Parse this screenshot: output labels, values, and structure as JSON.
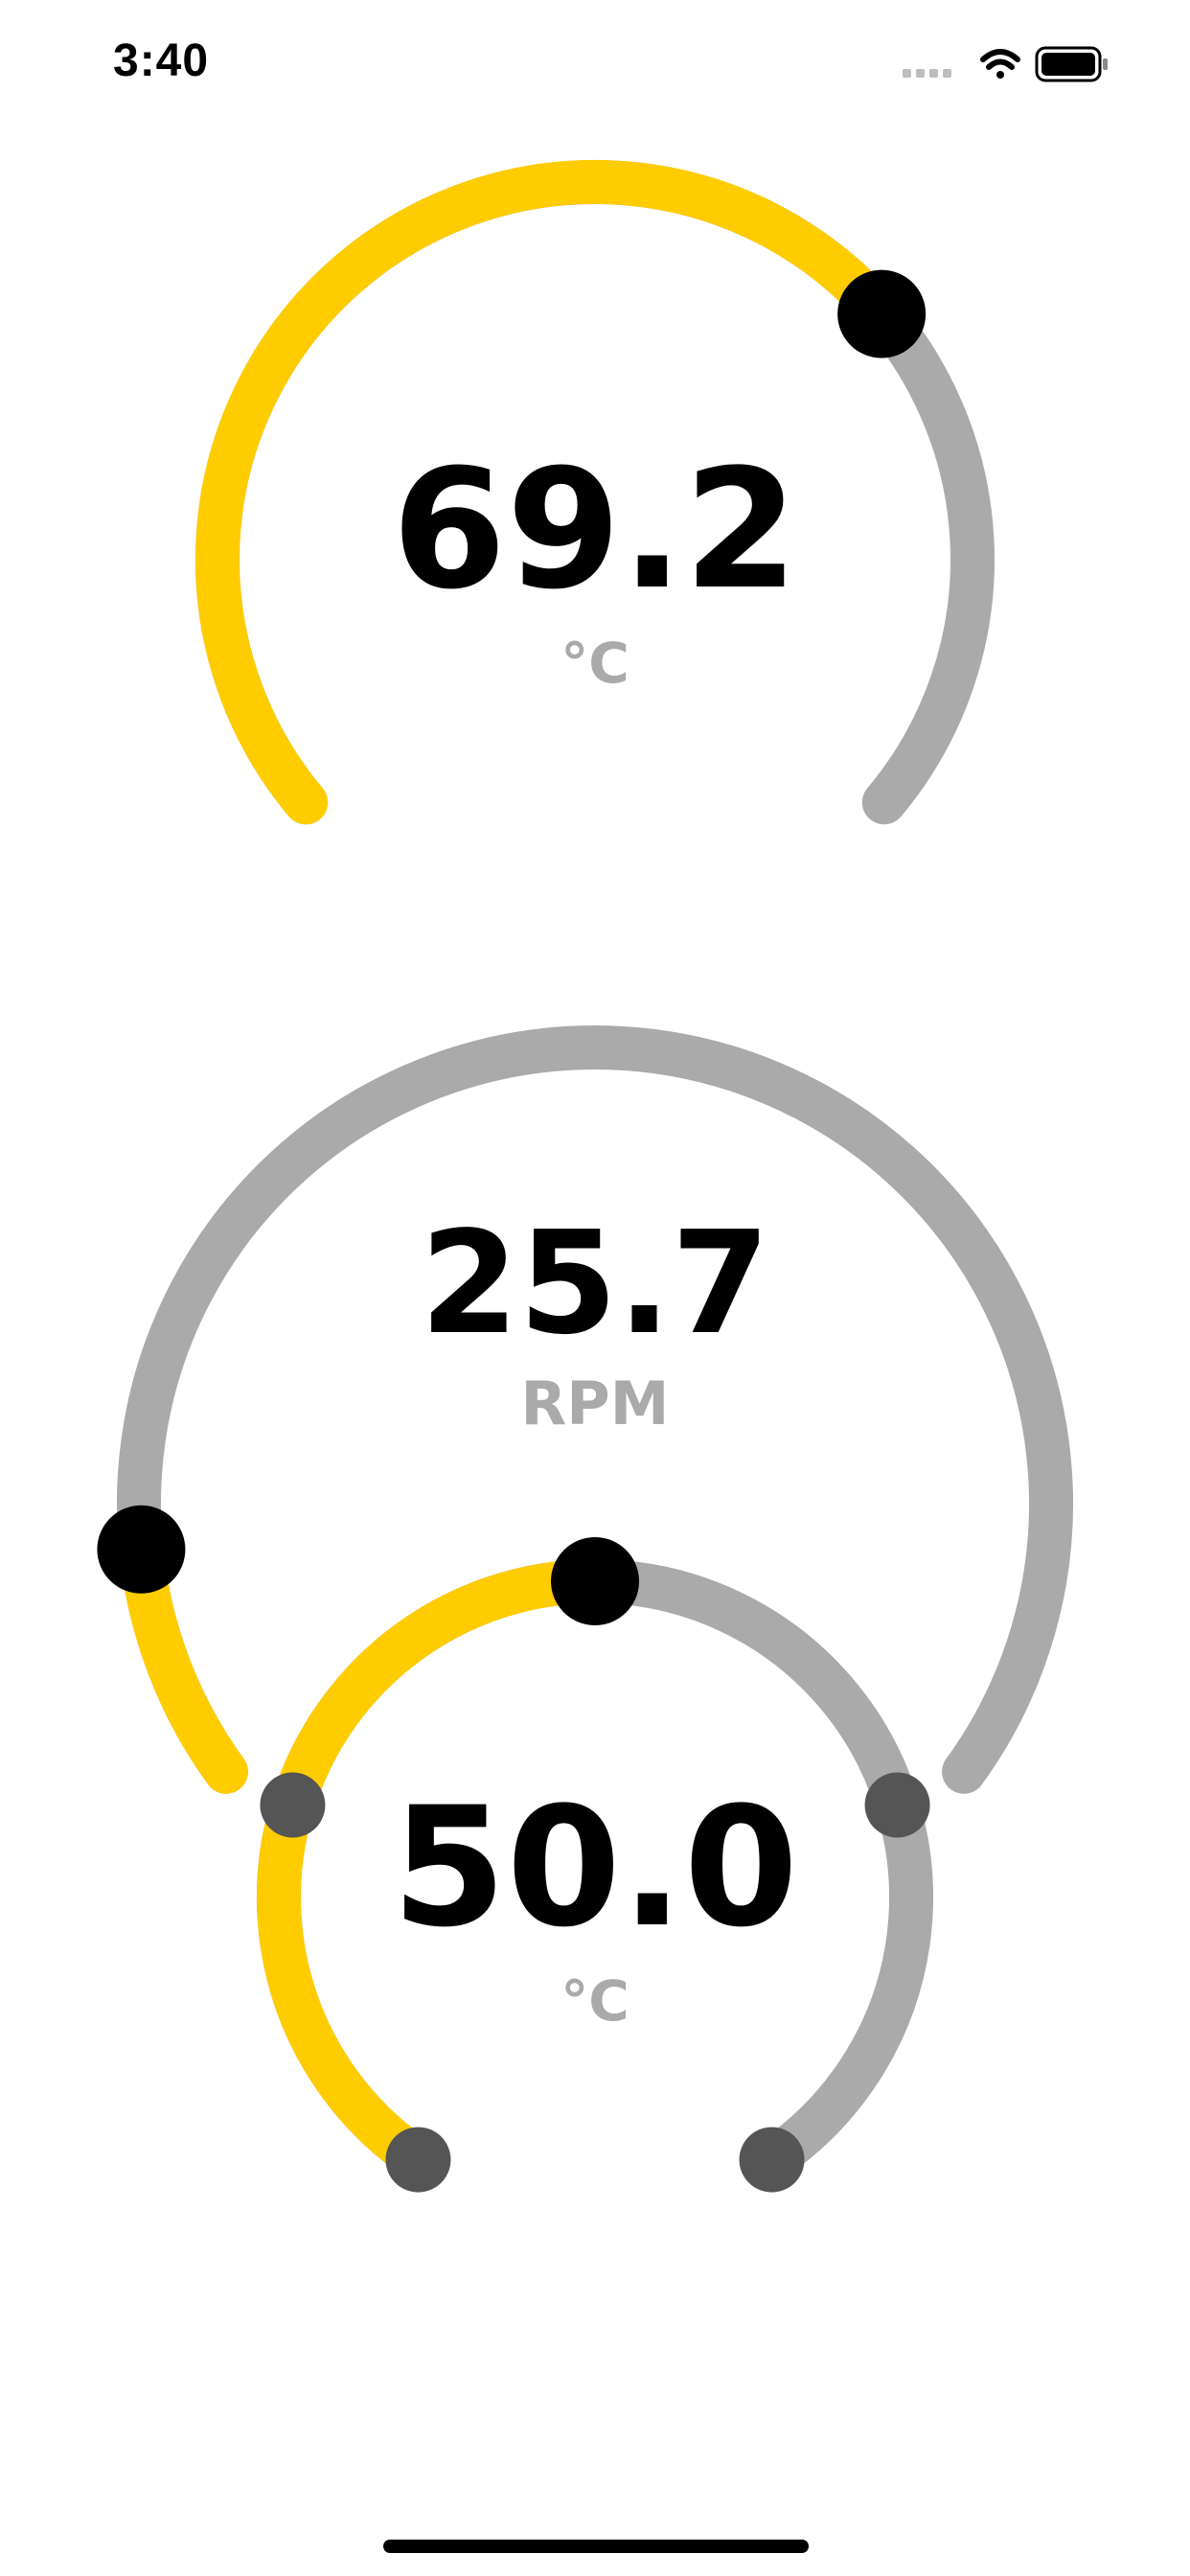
{
  "status_bar": {
    "time": "3:40",
    "icons": [
      "signal-dots-icon",
      "wifi-icon",
      "battery-icon"
    ]
  },
  "colors": {
    "active": "#FFCC00",
    "track": "#AAAAAA",
    "knob": "#000000",
    "marker": "#555555",
    "value_text": "#000000",
    "unit_text": "#AAAAAA"
  },
  "gauges": [
    {
      "id": "temperature-gauge",
      "value": "69.2",
      "unit": "°C",
      "fill_fraction": 0.69,
      "has_markers": false
    },
    {
      "id": "rpm-gauge",
      "value": "25.7",
      "unit": "RPM",
      "fill_fraction": 0.12,
      "has_markers": false
    },
    {
      "id": "setpoint-gauge",
      "value": "50.0",
      "unit": "°C",
      "fill_fraction": 0.5,
      "has_markers": true,
      "marker_fractions": [
        0,
        0.25,
        0.75,
        1
      ]
    }
  ]
}
